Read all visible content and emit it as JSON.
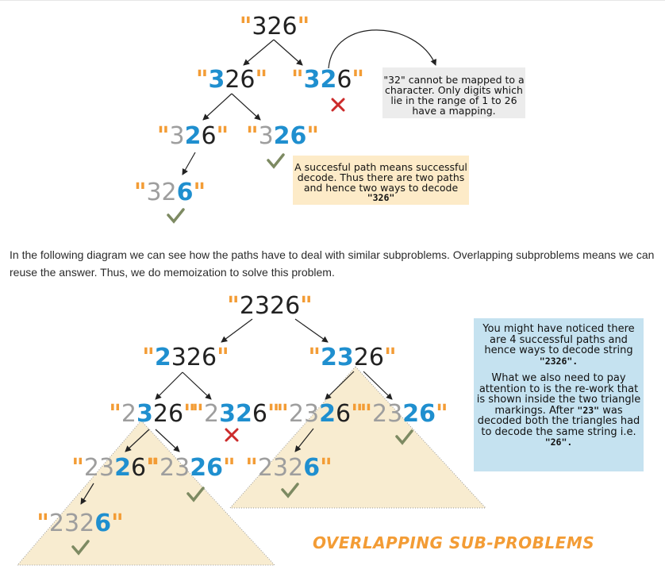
{
  "colors": {
    "orange": "#f39c35",
    "blue": "#1f8fcf",
    "gray": "#9e9e9e",
    "black": "#222222",
    "check": "#7d8a62",
    "cross": "#cc2b2b",
    "triangle": "#f8ecd0",
    "note_gray": "#ececec",
    "note_peach": "#fdebc8",
    "note_blue": "#c5e2f0"
  },
  "diagram1": {
    "root": {
      "q1": "\"",
      "t": "326",
      "q2": "\""
    },
    "left": {
      "q1": "\"",
      "b": "3",
      "t": "26",
      "q2": "\""
    },
    "right": {
      "q1": "\"",
      "b": "32",
      "t": "6",
      "q2": "\""
    },
    "ll": {
      "q1": "\"",
      "g": "3",
      "b": "2",
      "t": "6",
      "q2": "\""
    },
    "lr": {
      "q1": "\"",
      "g": "3",
      "b": "26",
      "q2": "\""
    },
    "lll": {
      "q1": "\"",
      "g": "32",
      "b": "6",
      "q2": "\""
    },
    "note_invalid": {
      "l1": "\"32\" cannot be mapped to a",
      "l2": "character. Only digits which",
      "l3": "lie in the range of 1 to 26",
      "l4": "have a mapping."
    },
    "note_success": {
      "l1": "A succesful path means successful",
      "l2": "decode. Thus there are two paths",
      "l3": "and hence two ways to decode",
      "l4": "\"326\""
    }
  },
  "paragraph": "In the following diagram we can see how the paths have to deal with similar subproblems. Overlapping subproblems means we can reuse the answer. Thus, we do memoization to solve this problem.",
  "diagram2": {
    "root": {
      "q1": "\"",
      "t": "2326",
      "q2": "\""
    },
    "left": {
      "q1": "\"",
      "b": "2",
      "t": "326",
      "q2": "\""
    },
    "right": {
      "q1": "\"",
      "b": "23",
      "t": "26",
      "q2": "\""
    },
    "ll": {
      "q1": "\"",
      "g": "2",
      "b": "3",
      "t": "26",
      "q2": "\""
    },
    "lr": {
      "q1": "\"",
      "g": "2",
      "b": "32",
      "t": "6",
      "q2": "\""
    },
    "rl": {
      "q1": "\"",
      "g": "23",
      "b": "2",
      "t": "6",
      "q2": "\""
    },
    "rr": {
      "q1": "\"",
      "g": "23",
      "b": "26",
      "q2": "\""
    },
    "lll": {
      "q1": "\"",
      "g": "23",
      "b": "2",
      "t": "6",
      "q2": "\""
    },
    "llr": {
      "q1": "\"",
      "g": "23",
      "b": "26",
      "q2": "\""
    },
    "rll": {
      "q1": "\"",
      "g": "232",
      "b": "6",
      "q2": "\""
    },
    "llll": {
      "q1": "\"",
      "g": "232",
      "b": "6",
      "q2": "\""
    },
    "note": {
      "l1": "You might have noticed there",
      "l2": "are 4 successful paths and",
      "l3": "hence ways to decode string",
      "l4": "\"2326\".",
      "l5": "What we also need to pay",
      "l6": "attention to is the re-work that",
      "l7": "is shown inside the two triangle",
      "l8": "markings. After",
      "l8s": "\"23\"",
      "l8e": " was",
      "l9": "decoded both the triangles had",
      "l10": "to decode the same string i.e.",
      "l11": "\"26\"."
    },
    "label": "OVERLAPPING SUB-PROBLEMS"
  }
}
